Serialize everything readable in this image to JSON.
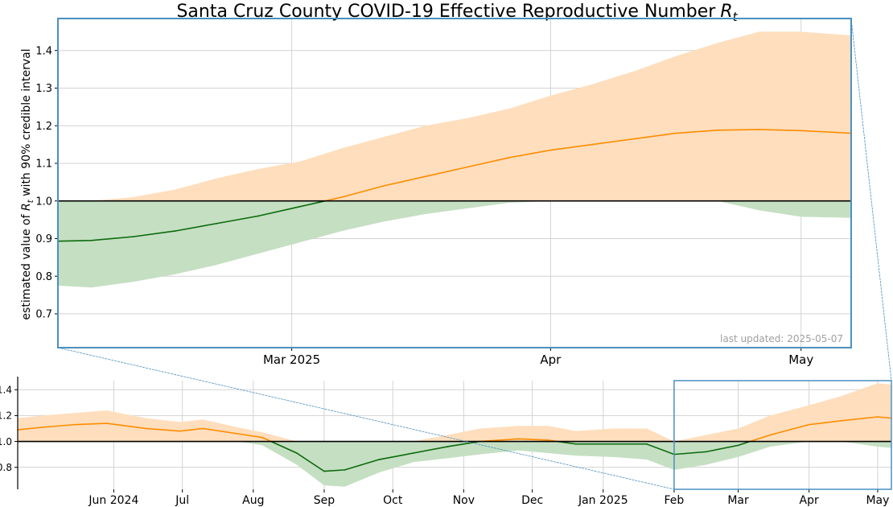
{
  "colors": {
    "above_line": "#ff8c00",
    "above_band": "#fedebd",
    "below_line": "#0b6a0b",
    "below_band": "#c5dfc3",
    "reference": "#000000",
    "frame": "#4a90c0",
    "grid": "#d3d3d3",
    "note": "#a0a0a0"
  },
  "chart_data": {
    "type": "line",
    "title": "Santa Cruz County COVID-19 Effective Reproductive Number",
    "title_symbol": "R",
    "title_symbol_sub": "t",
    "ylabel_prefix": "estimated value of ",
    "ylabel_symbol": "R",
    "ylabel_symbol_sub": "t",
    "ylabel_suffix": " with 90% credible interval",
    "note": "last updated: 2025-05-07",
    "reference_value": 1.0,
    "zoom": {
      "xlim": [
        "2025-02-01",
        "2025-05-07"
      ],
      "ylim": [
        0.61,
        1.485
      ],
      "yticks": [
        "0.7",
        "0.8",
        "0.9",
        "1.0",
        "1.1",
        "1.2",
        "1.3",
        "1.4"
      ],
      "xticks": [
        {
          "date": "2025-03-01",
          "label": "Mar 2025"
        },
        {
          "date": "2025-04-01",
          "label": "Apr"
        },
        {
          "date": "2025-05-01",
          "label": "May"
        }
      ],
      "series": {
        "x": [
          "2025-02-01",
          "2025-02-05",
          "2025-02-10",
          "2025-02-15",
          "2025-02-20",
          "2025-02-25",
          "2025-03-02",
          "2025-03-07",
          "2025-03-12",
          "2025-03-17",
          "2025-03-22",
          "2025-03-27",
          "2025-04-01",
          "2025-04-06",
          "2025-04-11",
          "2025-04-16",
          "2025-04-21",
          "2025-04-26",
          "2025-05-01",
          "2025-05-07"
        ],
        "rt": [
          0.893,
          0.895,
          0.905,
          0.92,
          0.94,
          0.96,
          0.985,
          1.01,
          1.04,
          1.065,
          1.09,
          1.115,
          1.135,
          1.15,
          1.165,
          1.18,
          1.188,
          1.19,
          1.187,
          1.18
        ],
        "lower": [
          0.775,
          0.77,
          0.785,
          0.805,
          0.83,
          0.86,
          0.89,
          0.92,
          0.945,
          0.965,
          0.98,
          0.995,
          1.0,
          1.015,
          1.025,
          1.02,
          1.0,
          0.975,
          0.958,
          0.955
        ],
        "upper": [
          1.0,
          1.0,
          1.01,
          1.03,
          1.06,
          1.085,
          1.105,
          1.14,
          1.17,
          1.2,
          1.22,
          1.245,
          1.28,
          1.31,
          1.345,
          1.385,
          1.42,
          1.45,
          1.45,
          1.44
        ]
      }
    },
    "overview": {
      "xlim": [
        "2024-04-20",
        "2025-05-07"
      ],
      "ylim": [
        0.63,
        1.47
      ],
      "yticks": [
        "0.8",
        "1.0",
        "1.2",
        "1.4"
      ],
      "xticks": [
        {
          "date": "2024-06-01",
          "label": "Jun 2024"
        },
        {
          "date": "2024-07-01",
          "label": "Jul"
        },
        {
          "date": "2024-08-01",
          "label": "Aug"
        },
        {
          "date": "2024-09-01",
          "label": "Sep"
        },
        {
          "date": "2024-10-01",
          "label": "Oct"
        },
        {
          "date": "2024-11-01",
          "label": "Nov"
        },
        {
          "date": "2024-12-01",
          "label": "Dec"
        },
        {
          "date": "2025-01-01",
          "label": "Jan 2025"
        },
        {
          "date": "2025-02-01",
          "label": "Feb"
        },
        {
          "date": "2025-03-01",
          "label": "Mar"
        },
        {
          "date": "2025-04-01",
          "label": "Apr"
        },
        {
          "date": "2025-05-01",
          "label": "May"
        }
      ],
      "series": {
        "x": [
          "2024-04-20",
          "2024-05-01",
          "2024-05-15",
          "2024-05-29",
          "2024-06-15",
          "2024-06-30",
          "2024-07-10",
          "2024-07-25",
          "2024-08-05",
          "2024-08-20",
          "2024-09-01",
          "2024-09-10",
          "2024-09-25",
          "2024-10-10",
          "2024-10-25",
          "2024-11-08",
          "2024-11-25",
          "2024-12-08",
          "2024-12-20",
          "2025-01-05",
          "2025-01-20",
          "2025-02-01",
          "2025-02-15",
          "2025-03-01",
          "2025-03-15",
          "2025-04-01",
          "2025-04-15",
          "2025-05-01",
          "2025-05-07"
        ],
        "rt": [
          1.09,
          1.11,
          1.13,
          1.14,
          1.1,
          1.08,
          1.1,
          1.06,
          1.03,
          0.91,
          0.77,
          0.78,
          0.86,
          0.91,
          0.96,
          1.0,
          1.02,
          1.01,
          0.98,
          0.98,
          0.98,
          0.9,
          0.92,
          0.97,
          1.05,
          1.13,
          1.16,
          1.19,
          1.18
        ],
        "lower": [
          1.01,
          1.02,
          1.03,
          1.05,
          1.03,
          1.01,
          1.04,
          1.0,
          0.97,
          0.82,
          0.66,
          0.65,
          0.76,
          0.84,
          0.87,
          0.9,
          0.93,
          0.91,
          0.89,
          0.88,
          0.86,
          0.78,
          0.82,
          0.88,
          0.96,
          1.0,
          1.02,
          0.96,
          0.95
        ],
        "upper": [
          1.18,
          1.2,
          1.22,
          1.24,
          1.18,
          1.15,
          1.17,
          1.11,
          1.07,
          0.99,
          0.87,
          0.89,
          0.95,
          1.0,
          1.05,
          1.1,
          1.12,
          1.12,
          1.08,
          1.1,
          1.1,
          1.0,
          1.05,
          1.1,
          1.2,
          1.28,
          1.35,
          1.45,
          1.44
        ]
      }
    }
  }
}
